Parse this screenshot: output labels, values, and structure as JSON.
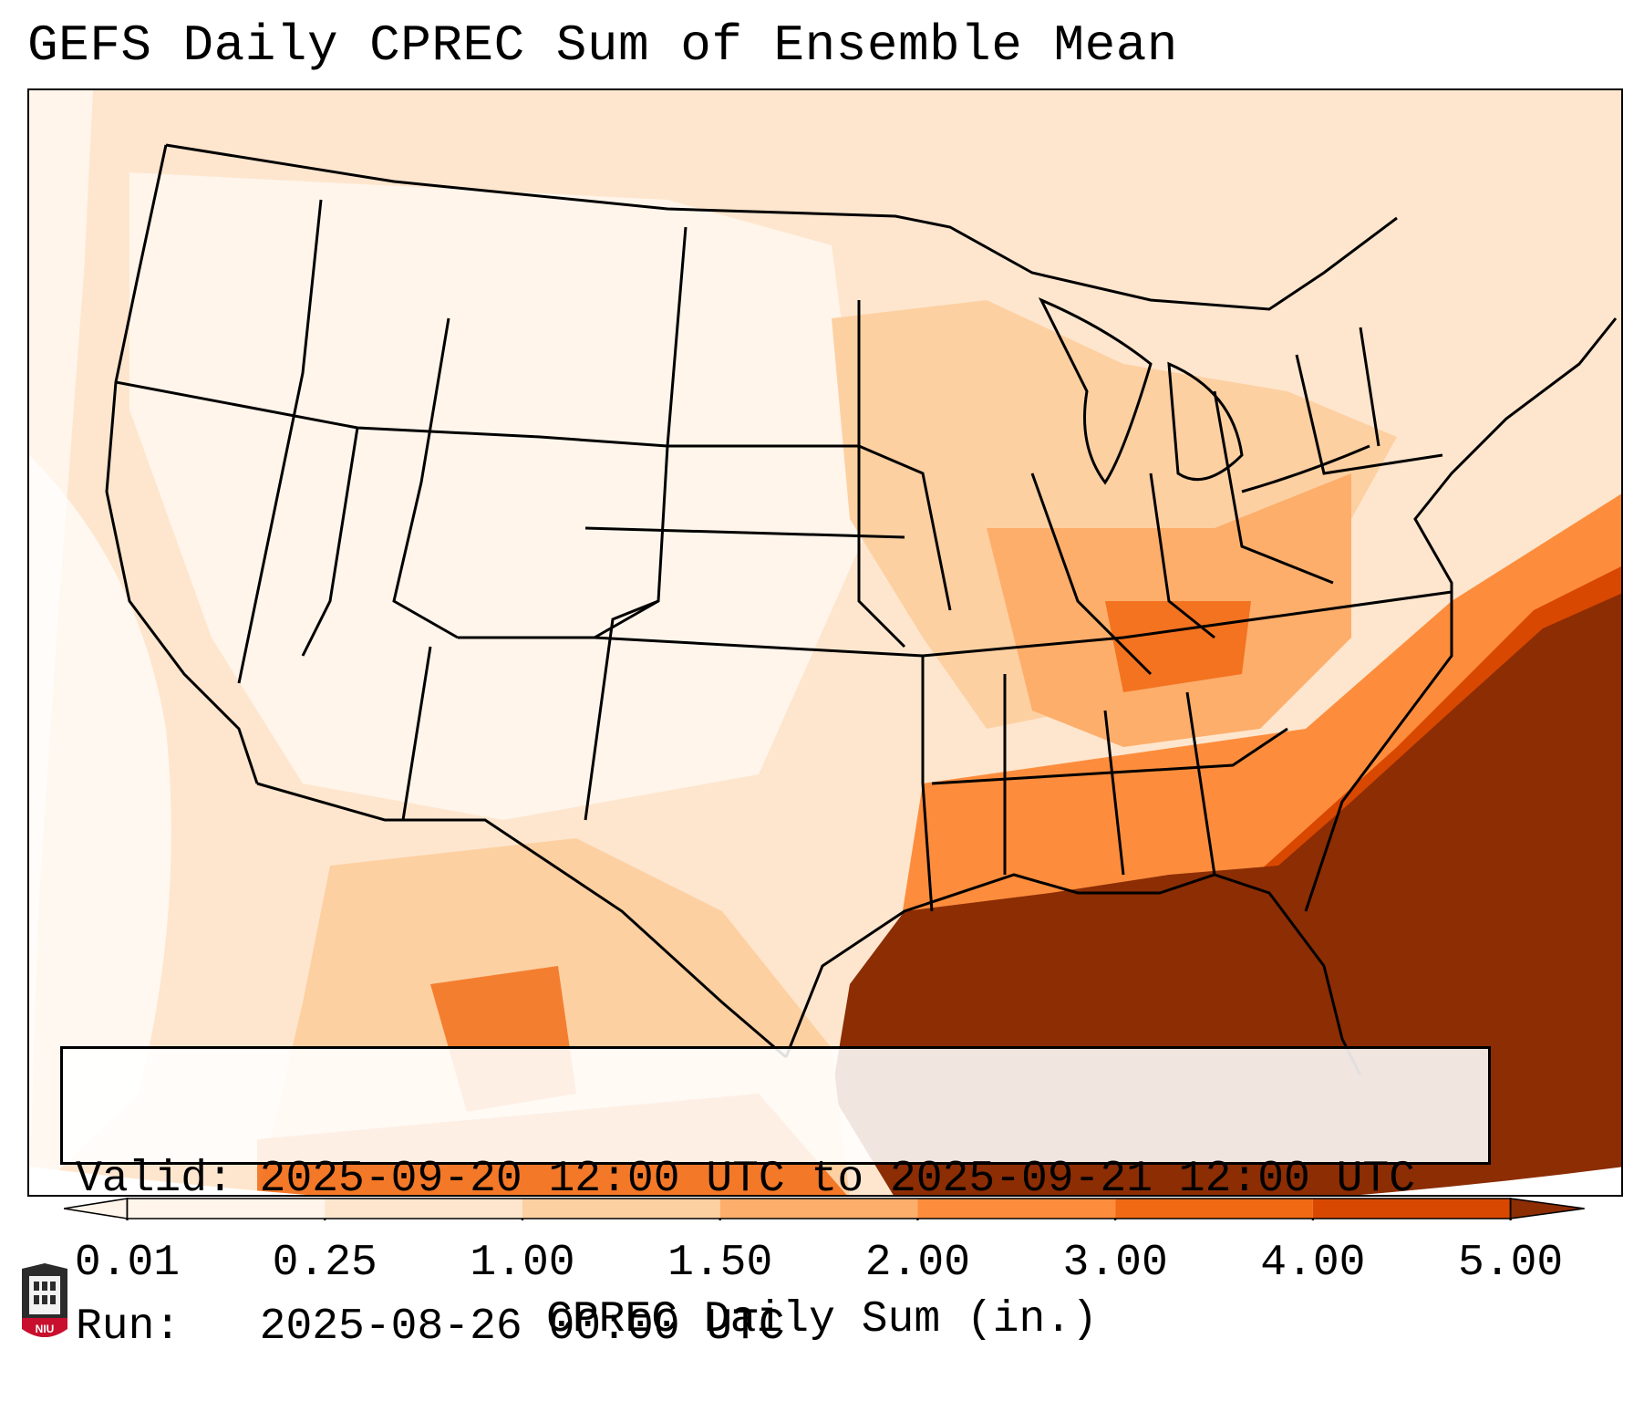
{
  "title": "GEFS Daily CPREC Sum of Ensemble Mean",
  "info": {
    "valid": "Valid: 2025-09-20 12:00 UTC to 2025-09-21 12:00 UTC",
    "run": "Run:   2025-08-26 00:00 UTC"
  },
  "colorbar": {
    "label": "CPREC Daily Sum (in.)",
    "ticks": [
      "0.01",
      "0.25",
      "1.00",
      "1.50",
      "2.00",
      "3.00",
      "4.00",
      "5.00"
    ],
    "colors": [
      "#fff5eb",
      "#fee6ce",
      "#fdd0a2",
      "#fdae6b",
      "#fd8d3c",
      "#f16913",
      "#d94801",
      "#8c2d04"
    ]
  },
  "logo": {
    "text": "NIU"
  },
  "map": {
    "projection": "Lambert conformal",
    "region": "Contiguous United States",
    "heaviest_precip": "Gulf of Mexico and western Atlantic",
    "icon": "precip-map"
  }
}
